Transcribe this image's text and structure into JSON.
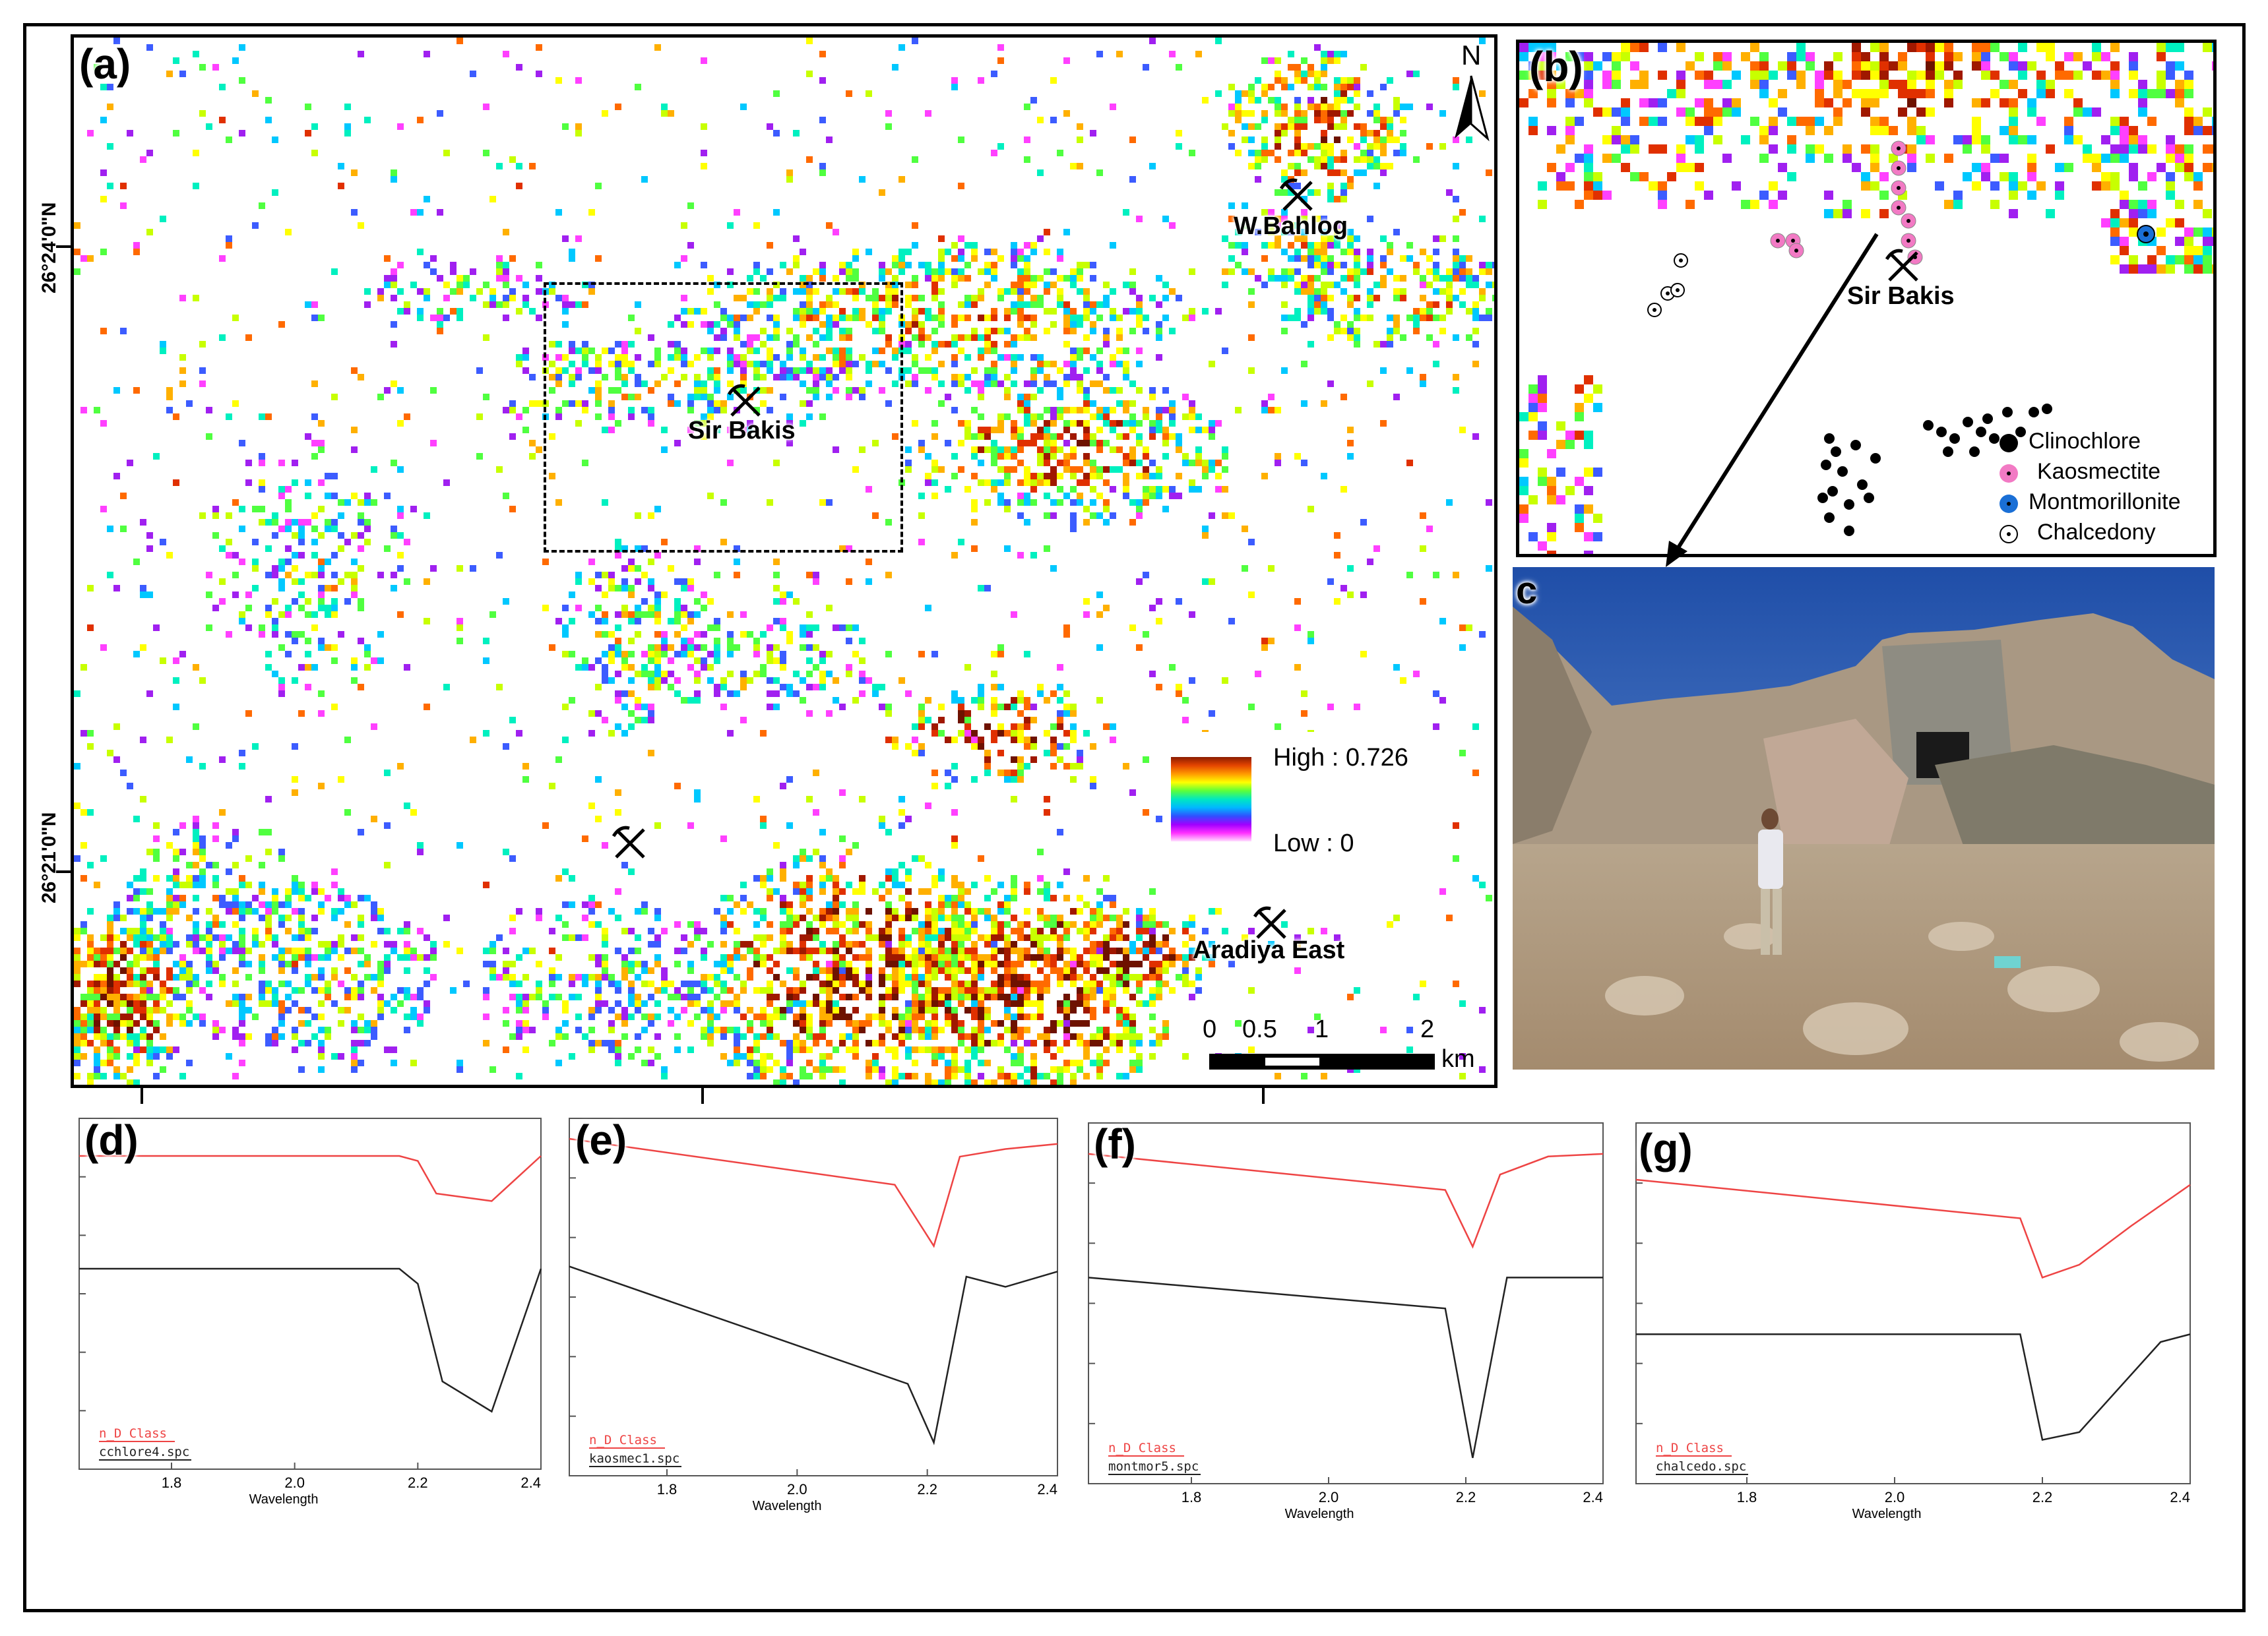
{
  "panels": {
    "a": "(a)",
    "b": "(b)",
    "c": "c",
    "d": "(d)",
    "e": "(e)",
    "f": "(f)",
    "g": "(g)"
  },
  "map_a": {
    "north": "N",
    "lat_top": "26°24'0\"N",
    "lat_bottom": "26°21'0\"N",
    "sites": {
      "w_bahlog": "W.Bahlog",
      "sir_bakis": "Sir Bakis",
      "aradiya_east": "Aradiya East"
    },
    "colorbar": {
      "high": "High : 0.726",
      "low": "Low : 0"
    },
    "scalebar": {
      "ticks": [
        "0",
        "0.5",
        "1",
        "2"
      ],
      "unit": "km"
    }
  },
  "map_b": {
    "site": "Sir Bakis",
    "legend": [
      {
        "label": "Clinochlore",
        "color": "#000000"
      },
      {
        "label": "Kaosmectite",
        "color": "#f27ac4"
      },
      {
        "label": "Montmorillonite",
        "color": "#1a6fd6"
      },
      {
        "label": "Chalcedony",
        "color": "#ffffff"
      }
    ]
  },
  "spectra": {
    "xlabel": "Wavelength",
    "xticks": [
      "1.8",
      "2.0",
      "2.2",
      "2.4"
    ],
    "class_label": "n_D Class",
    "colors": {
      "class": "#ee4444",
      "library": "#222222"
    },
    "plots": [
      {
        "panel": "(d)",
        "library": "cchlore4.spc",
        "red": [
          [
            1.65,
            0.15
          ],
          [
            2.17,
            0.15
          ],
          [
            2.2,
            0.17
          ],
          [
            2.23,
            0.3
          ],
          [
            2.32,
            0.33
          ],
          [
            2.4,
            0.15
          ]
        ],
        "black": [
          [
            1.65,
            0.6
          ],
          [
            2.17,
            0.6
          ],
          [
            2.2,
            0.66
          ],
          [
            2.24,
            1.05
          ],
          [
            2.32,
            1.17
          ],
          [
            2.4,
            0.6
          ]
        ]
      },
      {
        "panel": "(e)",
        "library": "kaosmec1.spc",
        "red": [
          [
            1.65,
            0.08
          ],
          [
            2.15,
            0.26
          ],
          [
            2.21,
            0.5
          ],
          [
            2.25,
            0.15
          ],
          [
            2.32,
            0.12
          ],
          [
            2.4,
            0.1
          ]
        ],
        "black": [
          [
            1.65,
            0.58
          ],
          [
            2.17,
            1.04
          ],
          [
            2.21,
            1.27
          ],
          [
            2.26,
            0.62
          ],
          [
            2.32,
            0.66
          ],
          [
            2.4,
            0.6
          ]
        ]
      },
      {
        "panel": "(f)",
        "library": "montmor5.spc",
        "red": [
          [
            1.65,
            0.12
          ],
          [
            2.17,
            0.26
          ],
          [
            2.21,
            0.48
          ],
          [
            2.25,
            0.2
          ],
          [
            2.32,
            0.13
          ],
          [
            2.4,
            0.12
          ]
        ],
        "black": [
          [
            1.65,
            0.6
          ],
          [
            2.17,
            0.72
          ],
          [
            2.21,
            1.3
          ],
          [
            2.26,
            0.6
          ],
          [
            2.4,
            0.6
          ]
        ]
      },
      {
        "panel": "(g)",
        "library": "chalcedo.spc",
        "red": [
          [
            1.65,
            0.22
          ],
          [
            2.17,
            0.37
          ],
          [
            2.2,
            0.6
          ],
          [
            2.25,
            0.55
          ],
          [
            2.32,
            0.4
          ],
          [
            2.4,
            0.24
          ]
        ],
        "black": [
          [
            1.65,
            0.82
          ],
          [
            2.17,
            0.82
          ],
          [
            2.2,
            1.23
          ],
          [
            2.25,
            1.2
          ],
          [
            2.36,
            0.85
          ],
          [
            2.4,
            0.82
          ]
        ]
      }
    ]
  }
}
